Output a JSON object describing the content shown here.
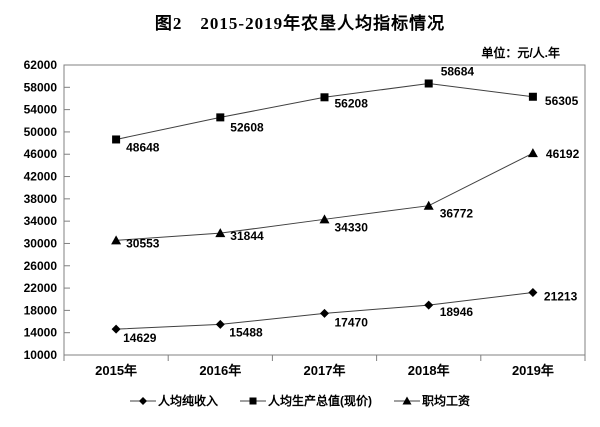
{
  "chart_data": {
    "type": "line",
    "title": "图2　2015-2019年农垦人均指标情况",
    "unit_label": "单位：元/人.年",
    "categories": [
      "2015年",
      "2016年",
      "2017年",
      "2018年",
      "2019年"
    ],
    "series": [
      {
        "name": "人均纯收入",
        "marker": "diamond",
        "values": [
          14629,
          15488,
          17470,
          18946,
          21213
        ]
      },
      {
        "name": "人均生产总值(现价)",
        "marker": "square",
        "values": [
          48648,
          52608,
          56208,
          58684,
          56305
        ]
      },
      {
        "name": "职均工资",
        "marker": "triangle",
        "values": [
          30553,
          31844,
          34330,
          36772,
          46192
        ]
      }
    ],
    "y_axis": {
      "min": 10000,
      "max": 62000,
      "step": 4000
    },
    "x_axis_label": "",
    "y_axis_label": "",
    "grid": false,
    "legend_position": "bottom",
    "colors": {
      "line": "#404040",
      "marker": "#000000",
      "axis": "#808080",
      "text": "#000000",
      "background": "#ffffff"
    }
  }
}
